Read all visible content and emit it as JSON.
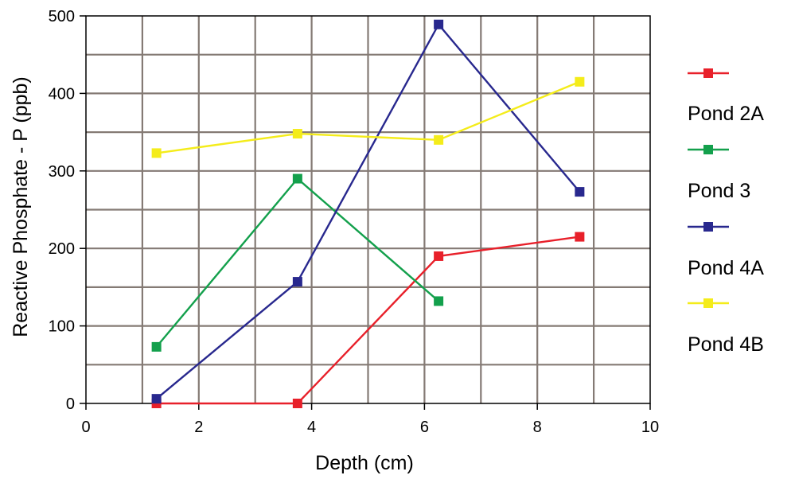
{
  "chart_data": {
    "type": "line",
    "xlabel": "Depth (cm)",
    "ylabel": "Reactive Phosphate - P (ppb)",
    "xlim": [
      0,
      10
    ],
    "ylim": [
      0,
      500
    ],
    "x_ticks": [
      0,
      2,
      4,
      6,
      8,
      10
    ],
    "y_ticks": [
      0,
      100,
      200,
      300,
      400,
      500
    ],
    "grid": true,
    "legend_position": "right",
    "series": [
      {
        "name": "Pond 2A",
        "color": "#e8202a",
        "x": [
          1.25,
          3.75,
          6.25,
          8.75
        ],
        "y": [
          0,
          0,
          190,
          215
        ]
      },
      {
        "name": "Pond 3",
        "color": "#13a04c",
        "x": [
          1.25,
          3.75,
          6.25
        ],
        "y": [
          73,
          290,
          132
        ]
      },
      {
        "name": "Pond 4A",
        "color": "#28288e",
        "x": [
          1.25,
          3.75,
          6.25,
          8.75
        ],
        "y": [
          6,
          157,
          489,
          273
        ]
      },
      {
        "name": "Pond 4B",
        "color": "#f4ec1a",
        "x": [
          1.25,
          3.75,
          6.25,
          8.75
        ],
        "y": [
          323,
          348,
          340,
          415
        ]
      }
    ]
  }
}
